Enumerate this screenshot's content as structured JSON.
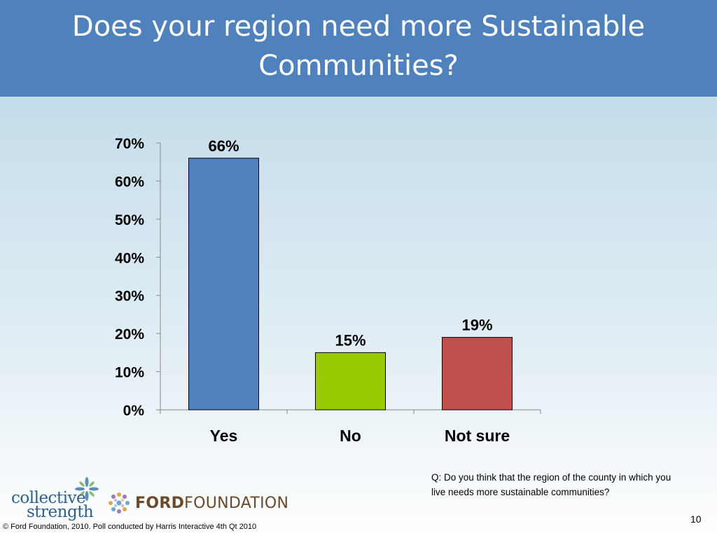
{
  "slide": {
    "title": "Does your region need more Sustainable Communities?",
    "question": "Q: Do you think that the region of the county in which you live needs more sustainable communities?",
    "page_number": "10",
    "footer": "© Ford Foundation, 2010. Poll conducted by Harris Interactive 4th Qt 2010",
    "title_bar_color": "#4f81bd"
  },
  "logos": {
    "collective_strength": {
      "line1": "collective",
      "line2": "strength",
      "icon": "flower-icon"
    },
    "ford_foundation": {
      "text_bold": "FORD",
      "text_regular": "FOUNDATION",
      "icon": "dot-ring-icon"
    }
  },
  "chart_data": {
    "type": "bar",
    "categories": [
      "Yes",
      "No",
      "Not sure"
    ],
    "values": [
      66,
      15,
      19
    ],
    "value_labels": [
      "66%",
      "15%",
      "19%"
    ],
    "colors": [
      "#4f81bd",
      "#99cc00",
      "#c0504d"
    ],
    "ylim": [
      0,
      70
    ],
    "yticks": [
      0,
      10,
      20,
      30,
      40,
      50,
      60,
      70
    ],
    "ytick_labels": [
      "0%",
      "10%",
      "20%",
      "30%",
      "40%",
      "50%",
      "60%",
      "70%"
    ],
    "title": "",
    "xlabel": "",
    "ylabel": "",
    "grid": false,
    "legend": "none"
  }
}
